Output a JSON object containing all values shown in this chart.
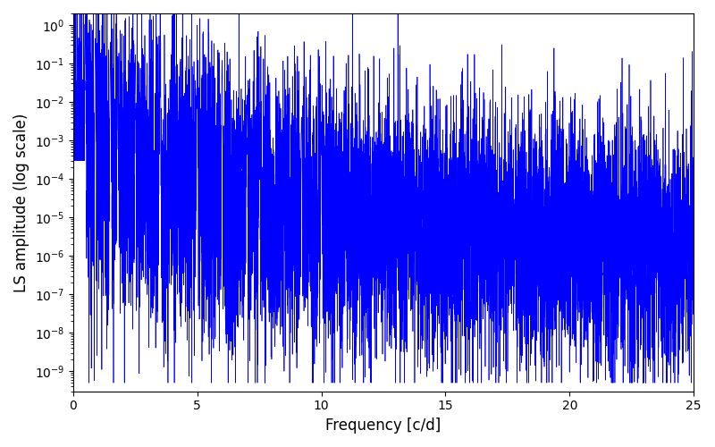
{
  "xlabel": "Frequency [c/d]",
  "ylabel": "LS amplitude (log scale)",
  "xlim": [
    0,
    25
  ],
  "ylim": [
    3e-10,
    2.0
  ],
  "line_color": "#0000ff",
  "line_width": 0.5,
  "figsize": [
    8.0,
    5.0
  ],
  "dpi": 100,
  "bg_color": "#ffffff",
  "seed": 12345,
  "n_points": 8000,
  "freq_max": 25.0
}
